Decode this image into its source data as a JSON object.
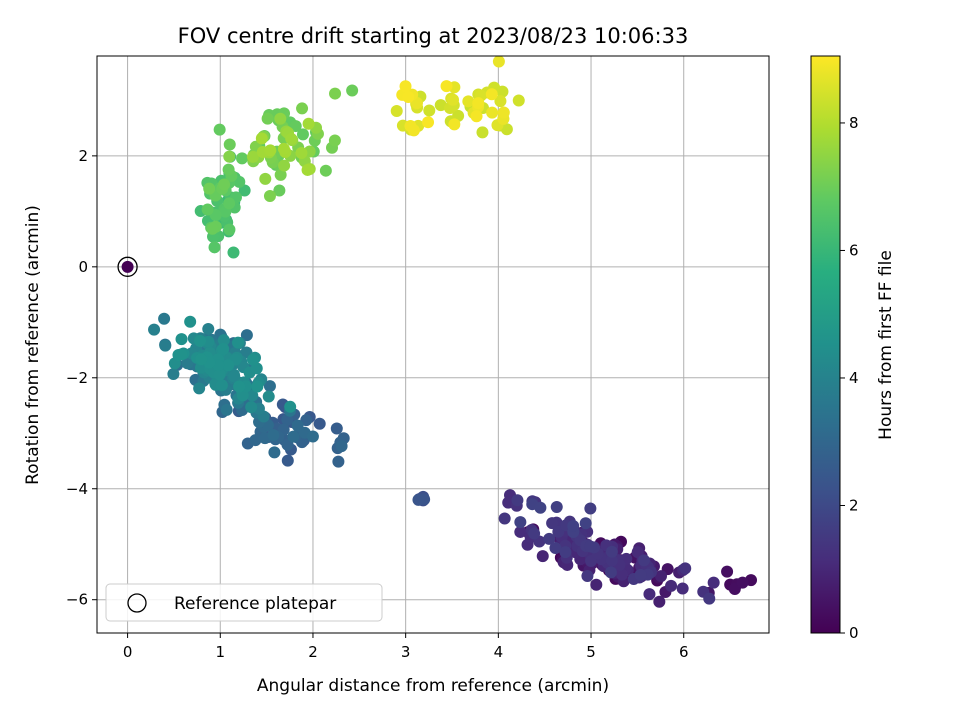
{
  "chart_data": {
    "type": "scatter",
    "title": "FOV centre drift starting at 2023/08/23 10:06:33",
    "xlabel": "Angular distance from reference (arcmin)",
    "ylabel": "Rotation from reference (arcmin)",
    "xlim": [
      -0.33,
      6.92
    ],
    "ylim": [
      -6.6,
      3.8
    ],
    "xticks": [
      0,
      1,
      2,
      3,
      4,
      5,
      6
    ],
    "yticks": [
      -6,
      -4,
      -2,
      0,
      2
    ],
    "grid": true,
    "colormap": "viridis",
    "colorbar": {
      "label": "Hours from first FF file",
      "range": [
        0,
        9.05
      ],
      "ticks": [
        0,
        2,
        4,
        6,
        8
      ]
    },
    "legend": {
      "position": "lower-left",
      "entries": [
        {
          "label": "Reference platepar",
          "marker": "open-circle"
        }
      ]
    },
    "reference_point": {
      "x": 0,
      "y": 0,
      "hours": 0
    },
    "clusters": [
      {
        "center": [
          5.3,
          -5.35
        ],
        "spread": [
          0.42,
          0.28
        ],
        "corr": -0.75,
        "hours": [
          0.1,
          1.6
        ],
        "count": 140
      },
      {
        "center": [
          6.55,
          -5.72
        ],
        "spread": [
          0.06,
          0.1
        ],
        "corr": 0,
        "hours": [
          0.2,
          0.45
        ],
        "count": 6
      },
      {
        "center": [
          4.55,
          -4.6
        ],
        "spread": [
          0.25,
          0.3
        ],
        "corr": -0.4,
        "hours": [
          1.1,
          1.8
        ],
        "count": 30
      },
      {
        "center": [
          3.18,
          -4.15
        ],
        "spread": [
          0.03,
          0.08
        ],
        "corr": 0,
        "hours": [
          2.1,
          2.4
        ],
        "count": 5
      },
      {
        "center": [
          1.7,
          -2.95
        ],
        "spread": [
          0.28,
          0.25
        ],
        "corr": -0.5,
        "hours": [
          2.4,
          3.2
        ],
        "count": 45
      },
      {
        "center": [
          2.33,
          -3.15
        ],
        "spread": [
          0.04,
          0.12
        ],
        "corr": 0,
        "hours": [
          2.7,
          3.0
        ],
        "count": 4
      },
      {
        "center": [
          1.0,
          -1.8
        ],
        "spread": [
          0.28,
          0.35
        ],
        "corr": -0.6,
        "hours": [
          3.2,
          4.6
        ],
        "count": 160
      },
      {
        "center": [
          1.05,
          1.1
        ],
        "spread": [
          0.12,
          0.38
        ],
        "corr": 0.3,
        "hours": [
          6.0,
          7.0
        ],
        "count": 45
      },
      {
        "center": [
          1.7,
          2.2
        ],
        "spread": [
          0.28,
          0.38
        ],
        "corr": 0.3,
        "hours": [
          6.8,
          7.8
        ],
        "count": 70
      },
      {
        "center": [
          3.5,
          2.85
        ],
        "spread": [
          0.38,
          0.25
        ],
        "corr": 0,
        "hours": [
          8.3,
          9.0
        ],
        "count": 50
      }
    ]
  }
}
